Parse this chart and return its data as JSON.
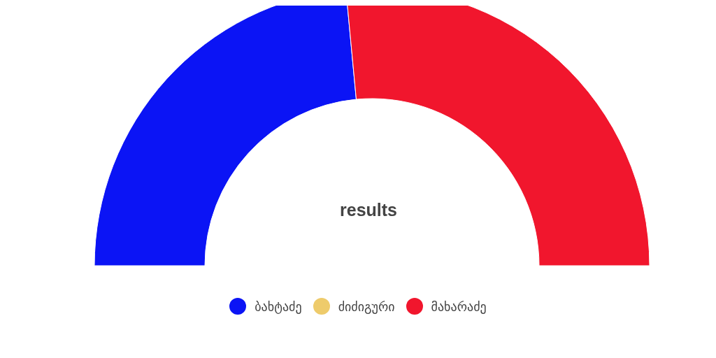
{
  "chart_data": {
    "type": "donut",
    "title": "results",
    "categories": [
      "ბახტაძე",
      "ძიძიგური",
      "მახარაძე"
    ],
    "values": [
      47,
      0,
      53
    ],
    "colors": [
      "#0b14f5",
      "#eecb6b",
      "#f1162d"
    ],
    "legend": "bottom"
  }
}
